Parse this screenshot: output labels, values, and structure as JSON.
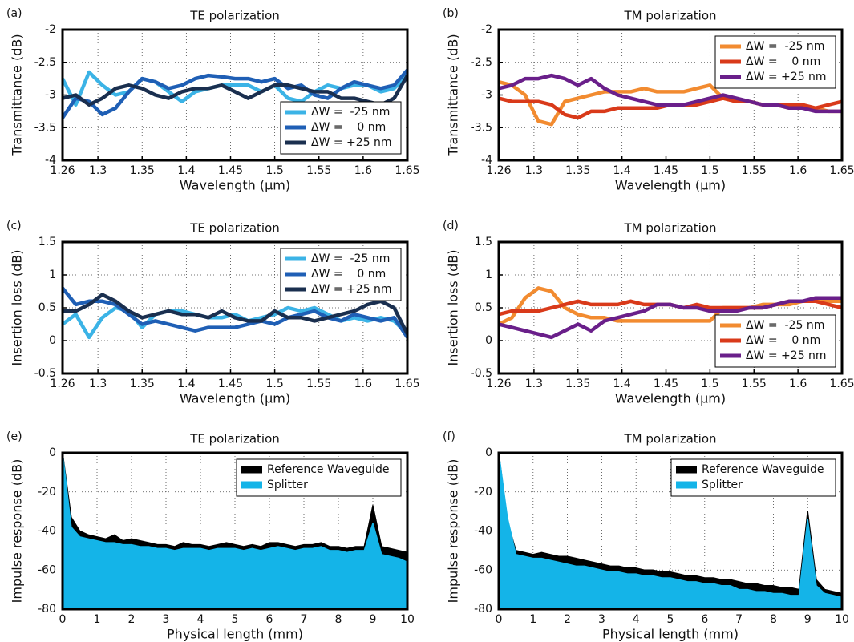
{
  "chart_data": [
    {
      "type": "line",
      "panel_label": "(a)",
      "title": "TE polarization",
      "xlabel": "Wavelength (μm)",
      "ylabel": "Transmittance (dB)",
      "x": [
        1.26,
        1.275,
        1.29,
        1.305,
        1.32,
        1.335,
        1.35,
        1.365,
        1.38,
        1.395,
        1.41,
        1.425,
        1.44,
        1.455,
        1.47,
        1.485,
        1.5,
        1.515,
        1.53,
        1.545,
        1.56,
        1.575,
        1.59,
        1.605,
        1.62,
        1.635,
        1.65
      ],
      "xlim": [
        1.26,
        1.65
      ],
      "xticks": [
        1.26,
        1.3,
        1.35,
        1.4,
        1.45,
        1.5,
        1.55,
        1.6,
        1.65
      ],
      "ylim": [
        -4,
        -2
      ],
      "yticks": [
        -4,
        -3.5,
        -3,
        -2.5,
        -2
      ],
      "grid": true,
      "legend": "lower right",
      "series": [
        {
          "name": "ΔW =  -25 nm",
          "color": "#3bb3e6",
          "values": [
            -2.75,
            -3.15,
            -2.65,
            -2.85,
            -3.0,
            -2.95,
            -2.75,
            -2.8,
            -2.95,
            -3.1,
            -2.95,
            -2.9,
            -2.85,
            -2.85,
            -2.85,
            -2.95,
            -2.85,
            -3.05,
            -3.1,
            -2.95,
            -2.85,
            -2.9,
            -2.85,
            -2.85,
            -2.95,
            -2.9,
            -2.7
          ]
        },
        {
          "name": "ΔW =    0 nm",
          "color": "#1f5fb5",
          "values": [
            -3.35,
            -3.05,
            -3.1,
            -3.3,
            -3.2,
            -2.95,
            -2.75,
            -2.8,
            -2.9,
            -2.85,
            -2.75,
            -2.7,
            -2.72,
            -2.75,
            -2.75,
            -2.8,
            -2.75,
            -2.9,
            -2.85,
            -3.0,
            -3.05,
            -2.9,
            -2.8,
            -2.85,
            -2.9,
            -2.85,
            -2.62
          ]
        },
        {
          "name": "ΔW = +25 nm",
          "color": "#1a2f4f",
          "values": [
            -3.05,
            -3.0,
            -3.15,
            -3.05,
            -2.9,
            -2.85,
            -2.9,
            -3.0,
            -3.05,
            -2.95,
            -2.9,
            -2.9,
            -2.85,
            -2.95,
            -3.05,
            -2.95,
            -2.85,
            -2.85,
            -2.9,
            -2.95,
            -2.95,
            -3.05,
            -3.05,
            -3.1,
            -3.15,
            -3.05,
            -2.7
          ]
        }
      ]
    },
    {
      "type": "line",
      "panel_label": "(b)",
      "title": "TM polarization",
      "xlabel": "Wavelength (μm)",
      "ylabel": "Transmittance (dB)",
      "x": [
        1.26,
        1.275,
        1.29,
        1.305,
        1.32,
        1.335,
        1.35,
        1.365,
        1.38,
        1.395,
        1.41,
        1.425,
        1.44,
        1.455,
        1.47,
        1.485,
        1.5,
        1.515,
        1.53,
        1.545,
        1.56,
        1.575,
        1.59,
        1.605,
        1.62,
        1.635,
        1.65
      ],
      "xlim": [
        1.26,
        1.65
      ],
      "xticks": [
        1.26,
        1.3,
        1.35,
        1.4,
        1.45,
        1.5,
        1.55,
        1.6,
        1.65
      ],
      "ylim": [
        -4,
        -2
      ],
      "yticks": [
        -4,
        -3.5,
        -3,
        -2.5,
        -2
      ],
      "grid": true,
      "legend": "upper right",
      "series": [
        {
          "name": "ΔW =  -25 nm",
          "color": "#f28b30",
          "values": [
            -2.8,
            -2.85,
            -3.0,
            -3.4,
            -3.45,
            -3.1,
            -3.05,
            -3.0,
            -2.95,
            -2.95,
            -2.95,
            -2.9,
            -2.95,
            -2.95,
            -2.95,
            -2.9,
            -2.85,
            -3.05,
            -3.1,
            -3.1,
            -3.15,
            -3.15,
            -3.2,
            -3.2,
            -3.2,
            -3.25,
            -3.25
          ]
        },
        {
          "name": "ΔW =    0 nm",
          "color": "#d93a1a",
          "values": [
            -3.05,
            -3.1,
            -3.1,
            -3.1,
            -3.15,
            -3.3,
            -3.35,
            -3.25,
            -3.25,
            -3.2,
            -3.2,
            -3.2,
            -3.2,
            -3.15,
            -3.15,
            -3.15,
            -3.1,
            -3.05,
            -3.1,
            -3.1,
            -3.15,
            -3.15,
            -3.15,
            -3.15,
            -3.2,
            -3.15,
            -3.1
          ]
        },
        {
          "name": "ΔW = +25 nm",
          "color": "#6a1f8a",
          "values": [
            -2.9,
            -2.85,
            -2.75,
            -2.75,
            -2.7,
            -2.75,
            -2.85,
            -2.75,
            -2.9,
            -3.0,
            -3.05,
            -3.1,
            -3.15,
            -3.15,
            -3.15,
            -3.1,
            -3.05,
            -3.0,
            -3.05,
            -3.1,
            -3.15,
            -3.15,
            -3.2,
            -3.2,
            -3.25,
            -3.25,
            -3.25
          ]
        }
      ]
    },
    {
      "type": "line",
      "panel_label": "(c)",
      "title": "TE polarization",
      "xlabel": "Wavelength (μm)",
      "ylabel": "Insertion loss (dB)",
      "x": [
        1.26,
        1.275,
        1.29,
        1.305,
        1.32,
        1.335,
        1.35,
        1.365,
        1.38,
        1.395,
        1.41,
        1.425,
        1.44,
        1.455,
        1.47,
        1.485,
        1.5,
        1.515,
        1.53,
        1.545,
        1.56,
        1.575,
        1.59,
        1.605,
        1.62,
        1.635,
        1.65
      ],
      "xlim": [
        1.26,
        1.65
      ],
      "xticks": [
        1.26,
        1.3,
        1.35,
        1.4,
        1.45,
        1.5,
        1.55,
        1.6,
        1.65
      ],
      "ylim": [
        -0.5,
        1.5
      ],
      "yticks": [
        -0.5,
        0,
        0.5,
        1,
        1.5
      ],
      "grid": true,
      "legend": "upper right",
      "series": [
        {
          "name": "ΔW =  -25 nm",
          "color": "#3bb3e6",
          "values": [
            0.25,
            0.4,
            0.05,
            0.35,
            0.5,
            0.45,
            0.2,
            0.4,
            0.45,
            0.45,
            0.4,
            0.35,
            0.35,
            0.4,
            0.3,
            0.35,
            0.4,
            0.5,
            0.45,
            0.5,
            0.4,
            0.3,
            0.35,
            0.3,
            0.35,
            0.3,
            0.1
          ]
        },
        {
          "name": "ΔW =    0 nm",
          "color": "#1f5fb5",
          "values": [
            0.8,
            0.55,
            0.6,
            0.6,
            0.55,
            0.4,
            0.25,
            0.3,
            0.25,
            0.2,
            0.15,
            0.2,
            0.2,
            0.2,
            0.25,
            0.3,
            0.25,
            0.35,
            0.4,
            0.45,
            0.35,
            0.3,
            0.4,
            0.35,
            0.3,
            0.35,
            0.05
          ]
        },
        {
          "name": "ΔW = +25 nm",
          "color": "#1a2f4f",
          "values": [
            0.45,
            0.45,
            0.55,
            0.7,
            0.6,
            0.45,
            0.35,
            0.4,
            0.45,
            0.4,
            0.4,
            0.35,
            0.45,
            0.35,
            0.3,
            0.3,
            0.45,
            0.35,
            0.35,
            0.3,
            0.35,
            0.4,
            0.45,
            0.55,
            0.6,
            0.5,
            0.1
          ]
        }
      ]
    },
    {
      "type": "line",
      "panel_label": "(d)",
      "title": "TM polarization",
      "xlabel": "Wavelength (μm)",
      "ylabel": "Insertion loss (dB)",
      "x": [
        1.26,
        1.275,
        1.29,
        1.305,
        1.32,
        1.335,
        1.35,
        1.365,
        1.38,
        1.395,
        1.41,
        1.425,
        1.44,
        1.455,
        1.47,
        1.485,
        1.5,
        1.515,
        1.53,
        1.545,
        1.56,
        1.575,
        1.59,
        1.605,
        1.62,
        1.635,
        1.65
      ],
      "xlim": [
        1.26,
        1.65
      ],
      "xticks": [
        1.26,
        1.3,
        1.35,
        1.4,
        1.45,
        1.5,
        1.55,
        1.6,
        1.65
      ],
      "ylim": [
        -0.5,
        1.5
      ],
      "yticks": [
        -0.5,
        0,
        0.5,
        1,
        1.5
      ],
      "grid": true,
      "legend": "lower right",
      "series": [
        {
          "name": "ΔW =  -25 nm",
          "color": "#f28b30",
          "values": [
            0.25,
            0.35,
            0.65,
            0.8,
            0.75,
            0.5,
            0.4,
            0.35,
            0.35,
            0.3,
            0.3,
            0.3,
            0.3,
            0.3,
            0.3,
            0.3,
            0.3,
            0.5,
            0.5,
            0.5,
            0.55,
            0.55,
            0.55,
            0.6,
            0.6,
            0.6,
            0.6
          ]
        },
        {
          "name": "ΔW =    0 nm",
          "color": "#d93a1a",
          "values": [
            0.4,
            0.45,
            0.45,
            0.45,
            0.5,
            0.55,
            0.6,
            0.55,
            0.55,
            0.55,
            0.6,
            0.55,
            0.55,
            0.55,
            0.5,
            0.55,
            0.5,
            0.5,
            0.5,
            0.5,
            0.5,
            0.55,
            0.6,
            0.6,
            0.6,
            0.55,
            0.5
          ]
        },
        {
          "name": "ΔW = +25 nm",
          "color": "#6a1f8a",
          "values": [
            0.25,
            0.2,
            0.15,
            0.1,
            0.05,
            0.15,
            0.25,
            0.15,
            0.3,
            0.35,
            0.4,
            0.45,
            0.55,
            0.55,
            0.5,
            0.5,
            0.45,
            0.45,
            0.45,
            0.5,
            0.5,
            0.55,
            0.6,
            0.6,
            0.65,
            0.65,
            0.65
          ]
        }
      ]
    },
    {
      "type": "area",
      "panel_label": "(e)",
      "title": "TE polarization",
      "xlabel": "Physical length (mm)",
      "ylabel": "Impulse response (dB)",
      "x": [
        0,
        0.25,
        0.5,
        0.75,
        1,
        1.25,
        1.5,
        1.75,
        2,
        2.25,
        2.5,
        2.75,
        3,
        3.25,
        3.5,
        3.75,
        4,
        4.25,
        4.5,
        4.75,
        5,
        5.25,
        5.5,
        5.75,
        6,
        6.25,
        6.5,
        6.75,
        7,
        7.25,
        7.5,
        7.75,
        8,
        8.25,
        8.5,
        8.75,
        9,
        9.25,
        9.5,
        9.75,
        10
      ],
      "xlim": [
        0,
        10
      ],
      "xticks": [
        0,
        1,
        2,
        3,
        4,
        5,
        6,
        7,
        8,
        9,
        10
      ],
      "ylim": [
        -80,
        0
      ],
      "yticks": [
        -80,
        -60,
        -40,
        -20,
        0
      ],
      "grid": true,
      "legend": "upper right",
      "series": [
        {
          "name": "Reference Waveguide",
          "color": "#000000",
          "values": [
            0,
            -33,
            -40,
            -42,
            -43,
            -44,
            -42,
            -45,
            -44,
            -45,
            -46,
            -47,
            -47,
            -48,
            -46,
            -47,
            -47,
            -48,
            -47,
            -46,
            -47,
            -48,
            -47,
            -48,
            -46,
            -46,
            -47,
            -48,
            -47,
            -47,
            -46,
            -48,
            -48,
            -49,
            -48,
            -48,
            -27,
            -48,
            -49,
            -50,
            -51
          ]
        },
        {
          "name": "Splitter",
          "color": "#14b4e8",
          "values": [
            0,
            -38,
            -43,
            -44,
            -45,
            -46,
            -46,
            -47,
            -47,
            -48,
            -48,
            -49,
            -49,
            -50,
            -49,
            -49,
            -49,
            -50,
            -49,
            -49,
            -49,
            -50,
            -49,
            -50,
            -49,
            -48,
            -49,
            -50,
            -49,
            -49,
            -48,
            -50,
            -50,
            -51,
            -50,
            -50,
            -36,
            -52,
            -53,
            -54,
            -56
          ]
        }
      ]
    },
    {
      "type": "area",
      "panel_label": "(f)",
      "title": "TM polarization",
      "xlabel": "Physical length (mm)",
      "ylabel": "Impulse response (dB)",
      "x": [
        0,
        0.25,
        0.5,
        0.75,
        1,
        1.25,
        1.5,
        1.75,
        2,
        2.25,
        2.5,
        2.75,
        3,
        3.25,
        3.5,
        3.75,
        4,
        4.25,
        4.5,
        4.75,
        5,
        5.25,
        5.5,
        5.75,
        6,
        6.25,
        6.5,
        6.75,
        7,
        7.25,
        7.5,
        7.75,
        8,
        8.25,
        8.5,
        8.75,
        9,
        9.25,
        9.5,
        9.75,
        10
      ],
      "xlim": [
        0,
        10
      ],
      "xticks": [
        0,
        1,
        2,
        3,
        4,
        5,
        6,
        7,
        8,
        9,
        10
      ],
      "ylim": [
        -80,
        0
      ],
      "yticks": [
        -80,
        -60,
        -40,
        -20,
        0
      ],
      "grid": true,
      "legend": "upper right",
      "series": [
        {
          "name": "Reference Waveguide",
          "color": "#000000",
          "values": [
            0,
            -35,
            -50,
            -51,
            -52,
            -51,
            -52,
            -53,
            -53,
            -54,
            -55,
            -56,
            -57,
            -58,
            -58,
            -59,
            -59,
            -60,
            -60,
            -61,
            -61,
            -62,
            -63,
            -63,
            -64,
            -64,
            -65,
            -65,
            -66,
            -67,
            -67,
            -68,
            -68,
            -69,
            -69,
            -70,
            -30,
            -65,
            -70,
            -71,
            -72
          ]
        },
        {
          "name": "Splitter",
          "color": "#14b4e8",
          "values": [
            0,
            -33,
            -52,
            -53,
            -54,
            -54,
            -55,
            -56,
            -57,
            -58,
            -58,
            -59,
            -60,
            -61,
            -61,
            -62,
            -62,
            -63,
            -63,
            -64,
            -64,
            -65,
            -66,
            -66,
            -67,
            -67,
            -68,
            -68,
            -70,
            -70,
            -71,
            -71,
            -72,
            -72,
            -73,
            -73,
            -34,
            -68,
            -72,
            -73,
            -74
          ]
        }
      ]
    }
  ]
}
